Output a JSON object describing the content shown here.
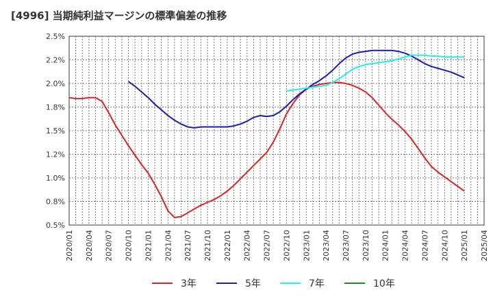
{
  "chart_data": {
    "type": "line",
    "title": "[4996]  当期純利益マージンの標準偏差の推移",
    "xlabel": "",
    "ylabel": "",
    "ylim": [
      0.5,
      2.5
    ],
    "y_ticks": [
      "0.5%",
      "0.8%",
      "1.0%",
      "1.2%",
      "1.5%",
      "1.8%",
      "2.0%",
      "2.2%",
      "2.5%"
    ],
    "x_ticks": [
      "2020/01",
      "2020/04",
      "2020/07",
      "2020/10",
      "2021/01",
      "2021/04",
      "2021/07",
      "2021/10",
      "2022/01",
      "2022/04",
      "2022/07",
      "2022/10",
      "2023/01",
      "2023/04",
      "2023/07",
      "2023/10",
      "2024/01",
      "2024/04",
      "2024/07",
      "2024/10",
      "2025/01",
      "2025/04"
    ],
    "grid": true,
    "legend_position": "bottom",
    "series": [
      {
        "name": "3年",
        "color": "#dd2222",
        "points": [
          [
            "2020/01",
            1.85
          ],
          [
            "2020/02",
            1.84
          ],
          [
            "2020/03",
            1.84
          ],
          [
            "2020/04",
            1.85
          ],
          [
            "2020/05",
            1.85
          ],
          [
            "2020/06",
            1.81
          ],
          [
            "2020/07",
            1.69
          ],
          [
            "2020/08",
            1.56
          ],
          [
            "2020/09",
            1.45
          ],
          [
            "2020/10",
            1.34
          ],
          [
            "2020/11",
            1.24
          ],
          [
            "2020/12",
            1.14
          ],
          [
            "2021/01",
            1.05
          ],
          [
            "2021/02",
            0.93
          ],
          [
            "2021/03",
            0.8
          ],
          [
            "2021/04",
            0.65
          ],
          [
            "2021/05",
            0.58
          ],
          [
            "2021/06",
            0.59
          ],
          [
            "2021/07",
            0.63
          ],
          [
            "2021/08",
            0.67
          ],
          [
            "2021/09",
            0.71
          ],
          [
            "2021/10",
            0.74
          ],
          [
            "2021/11",
            0.77
          ],
          [
            "2021/12",
            0.81
          ],
          [
            "2022/01",
            0.86
          ],
          [
            "2022/02",
            0.92
          ],
          [
            "2022/03",
            0.99
          ],
          [
            "2022/04",
            1.06
          ],
          [
            "2022/05",
            1.13
          ],
          [
            "2022/06",
            1.2
          ],
          [
            "2022/07",
            1.27
          ],
          [
            "2022/08",
            1.38
          ],
          [
            "2022/09",
            1.52
          ],
          [
            "2022/10",
            1.68
          ],
          [
            "2022/11",
            1.79
          ],
          [
            "2022/12",
            1.88
          ],
          [
            "2023/01",
            1.94
          ],
          [
            "2023/02",
            1.97
          ],
          [
            "2023/03",
            1.99
          ],
          [
            "2023/04",
            2.0
          ],
          [
            "2023/05",
            2.01
          ],
          [
            "2023/06",
            2.01
          ],
          [
            "2023/07",
            2.0
          ],
          [
            "2023/08",
            1.98
          ],
          [
            "2023/09",
            1.95
          ],
          [
            "2023/10",
            1.91
          ],
          [
            "2023/11",
            1.85
          ],
          [
            "2023/12",
            1.77
          ],
          [
            "2024/01",
            1.69
          ],
          [
            "2024/02",
            1.62
          ],
          [
            "2024/03",
            1.56
          ],
          [
            "2024/04",
            1.49
          ],
          [
            "2024/05",
            1.41
          ],
          [
            "2024/06",
            1.31
          ],
          [
            "2024/07",
            1.21
          ],
          [
            "2024/08",
            1.12
          ],
          [
            "2024/09",
            1.06
          ],
          [
            "2024/10",
            1.01
          ],
          [
            "2024/11",
            0.96
          ],
          [
            "2024/12",
            0.91
          ],
          [
            "2025/01",
            0.86
          ]
        ]
      },
      {
        "name": "5年",
        "color": "#1a1ab4",
        "points": [
          [
            "2020/10",
            2.02
          ],
          [
            "2020/11",
            1.97
          ],
          [
            "2020/12",
            1.91
          ],
          [
            "2021/01",
            1.85
          ],
          [
            "2021/02",
            1.78
          ],
          [
            "2021/03",
            1.72
          ],
          [
            "2021/04",
            1.66
          ],
          [
            "2021/05",
            1.61
          ],
          [
            "2021/06",
            1.57
          ],
          [
            "2021/07",
            1.54
          ],
          [
            "2021/08",
            1.53
          ],
          [
            "2021/09",
            1.54
          ],
          [
            "2021/10",
            1.54
          ],
          [
            "2021/11",
            1.54
          ],
          [
            "2021/12",
            1.54
          ],
          [
            "2022/01",
            1.54
          ],
          [
            "2022/02",
            1.55
          ],
          [
            "2022/03",
            1.57
          ],
          [
            "2022/04",
            1.6
          ],
          [
            "2022/05",
            1.64
          ],
          [
            "2022/06",
            1.66
          ],
          [
            "2022/07",
            1.65
          ],
          [
            "2022/08",
            1.66
          ],
          [
            "2022/09",
            1.7
          ],
          [
            "2022/10",
            1.76
          ],
          [
            "2022/11",
            1.83
          ],
          [
            "2022/12",
            1.89
          ],
          [
            "2023/01",
            1.94
          ],
          [
            "2023/02",
            1.99
          ],
          [
            "2023/03",
            2.03
          ],
          [
            "2023/04",
            2.08
          ],
          [
            "2023/05",
            2.14
          ],
          [
            "2023/06",
            2.21
          ],
          [
            "2023/07",
            2.27
          ],
          [
            "2023/08",
            2.31
          ],
          [
            "2023/09",
            2.33
          ],
          [
            "2023/10",
            2.34
          ],
          [
            "2023/11",
            2.35
          ],
          [
            "2023/12",
            2.35
          ],
          [
            "2024/01",
            2.35
          ],
          [
            "2024/02",
            2.35
          ],
          [
            "2024/03",
            2.34
          ],
          [
            "2024/04",
            2.32
          ],
          [
            "2024/05",
            2.29
          ],
          [
            "2024/06",
            2.25
          ],
          [
            "2024/07",
            2.21
          ],
          [
            "2024/08",
            2.18
          ],
          [
            "2024/09",
            2.16
          ],
          [
            "2024/10",
            2.14
          ],
          [
            "2024/11",
            2.12
          ],
          [
            "2024/12",
            2.09
          ],
          [
            "2025/01",
            2.06
          ]
        ]
      },
      {
        "name": "7年",
        "color": "#22eeee",
        "points": [
          [
            "2022/10",
            1.92
          ],
          [
            "2022/11",
            1.93
          ],
          [
            "2022/12",
            1.94
          ],
          [
            "2023/01",
            1.95
          ],
          [
            "2023/02",
            1.96
          ],
          [
            "2023/03",
            1.97
          ],
          [
            "2023/04",
            1.98
          ],
          [
            "2023/05",
            2.01
          ],
          [
            "2023/06",
            2.05
          ],
          [
            "2023/07",
            2.1
          ],
          [
            "2023/08",
            2.15
          ],
          [
            "2023/09",
            2.18
          ],
          [
            "2023/10",
            2.2
          ],
          [
            "2023/11",
            2.21
          ],
          [
            "2023/12",
            2.22
          ],
          [
            "2024/01",
            2.23
          ],
          [
            "2024/02",
            2.24
          ],
          [
            "2024/03",
            2.26
          ],
          [
            "2024/04",
            2.28
          ],
          [
            "2024/05",
            2.3
          ],
          [
            "2024/06",
            2.3
          ],
          [
            "2024/07",
            2.3
          ],
          [
            "2024/08",
            2.29
          ],
          [
            "2024/09",
            2.29
          ],
          [
            "2024/10",
            2.28
          ],
          [
            "2024/11",
            2.28
          ],
          [
            "2024/12",
            2.28
          ],
          [
            "2025/01",
            2.28
          ]
        ]
      },
      {
        "name": "10年",
        "color": "#228822",
        "points": []
      }
    ]
  }
}
